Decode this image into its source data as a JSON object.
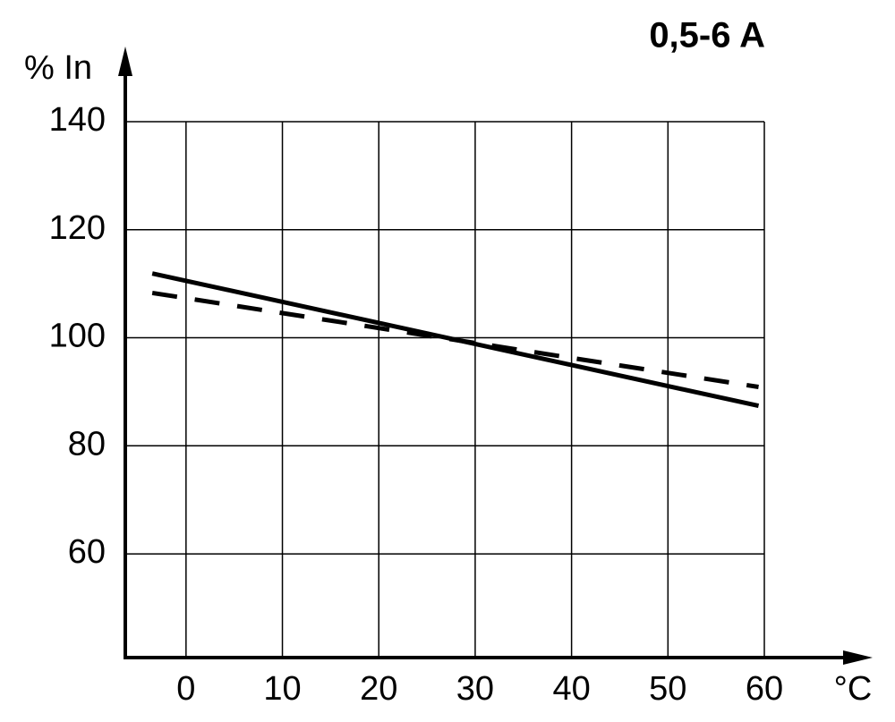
{
  "chart_data": {
    "type": "line",
    "title": "0,5-6 A",
    "y_label": "% In",
    "x_label": "°C",
    "series": [
      {
        "color": "#000000",
        "style": "solid",
        "x": [
          -3.5,
          59.4
        ],
        "values": [
          111.9,
          87.4
        ]
      },
      {
        "color": "#000000",
        "style": "dashed",
        "x": [
          -3.5,
          59.4
        ],
        "values": [
          108.3,
          90.9
        ]
      }
    ],
    "xlim": [
      -6.3,
      60
    ],
    "xticks": [
      0,
      10,
      20,
      30,
      40,
      50,
      60
    ],
    "ylim": [
      40.8,
      140
    ],
    "yticks": [
      60,
      80,
      100,
      120,
      140
    ],
    "grid": true
  }
}
